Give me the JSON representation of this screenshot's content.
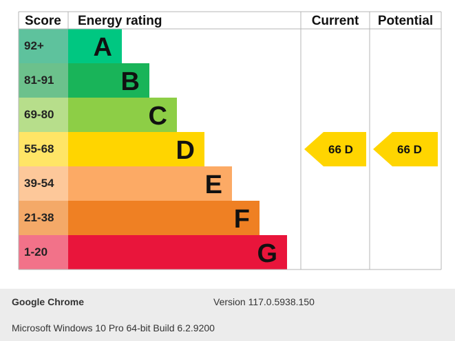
{
  "chart_data": {
    "type": "table",
    "headers": {
      "score": "Score",
      "rating": "Energy rating",
      "current": "Current",
      "potential": "Potential"
    },
    "bands": [
      {
        "score": "92+",
        "letter": "A",
        "rank": 1,
        "bar_color": "#00c781",
        "score_color": "#5ec29d"
      },
      {
        "score": "81-91",
        "letter": "B",
        "rank": 2,
        "bar_color": "#19b459",
        "score_color": "#6cc18c"
      },
      {
        "score": "69-80",
        "letter": "C",
        "rank": 3,
        "bar_color": "#8dce46",
        "score_color": "#b7de8b"
      },
      {
        "score": "55-68",
        "letter": "D",
        "rank": 4,
        "bar_color": "#ffd500",
        "score_color": "#ffe566"
      },
      {
        "score": "39-54",
        "letter": "E",
        "rank": 5,
        "bar_color": "#fcaa65",
        "score_color": "#fdc89a"
      },
      {
        "score": "21-38",
        "letter": "F",
        "rank": 6,
        "bar_color": "#ef8023",
        "score_color": "#f4a968"
      },
      {
        "score": "1-20",
        "letter": "G",
        "rank": 7,
        "bar_color": "#e9153b",
        "score_color": "#f27289"
      }
    ],
    "current": {
      "value": 66,
      "letter": "D",
      "label": "66  D",
      "color": "#ffd500"
    },
    "potential": {
      "value": 66,
      "letter": "D",
      "label": "66  D",
      "color": "#ffd500"
    }
  },
  "footer": {
    "browser": "Google Chrome",
    "version": "Version 117.0.5938.150",
    "os": "Microsoft Windows 10 Pro 64-bit Build 6.2.9200"
  }
}
